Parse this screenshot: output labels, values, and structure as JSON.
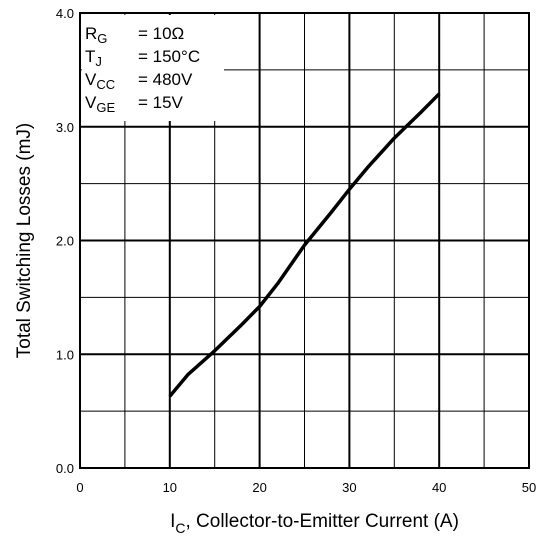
{
  "chart_data": {
    "type": "line",
    "title": "",
    "xlabel": {
      "symbol": "I",
      "subscript": "C",
      "text": ", Collector-to-Emitter Current (A)"
    },
    "ylabel": "Total Switching Losses (mJ)",
    "xlim": [
      0,
      50
    ],
    "ylim": [
      0.0,
      4.0
    ],
    "x_ticks": [
      "0",
      "10",
      "20",
      "30",
      "40",
      "50"
    ],
    "y_ticks": [
      "0.0",
      "1.0",
      "2.0",
      "3.0",
      "4.0"
    ],
    "grid": true,
    "legend": "none",
    "annotation": [
      {
        "sym": "R",
        "sub": "G",
        "val": "= 10Ω"
      },
      {
        "sym": "T",
        "sub": "J",
        "val": "= 150°C"
      },
      {
        "sym": "V",
        "sub": "CC",
        "val": "= 480V"
      },
      {
        "sym": "V",
        "sub": "GE",
        "val": "= 15V"
      }
    ],
    "series": [
      {
        "x": [
          10,
          12,
          15,
          18,
          20,
          22,
          25,
          28,
          30,
          32,
          35,
          38,
          40
        ],
        "y": [
          0.63,
          0.82,
          1.03,
          1.26,
          1.42,
          1.62,
          1.96,
          2.25,
          2.45,
          2.64,
          2.9,
          3.13,
          3.29
        ]
      }
    ],
    "line_color": "#000000"
  }
}
